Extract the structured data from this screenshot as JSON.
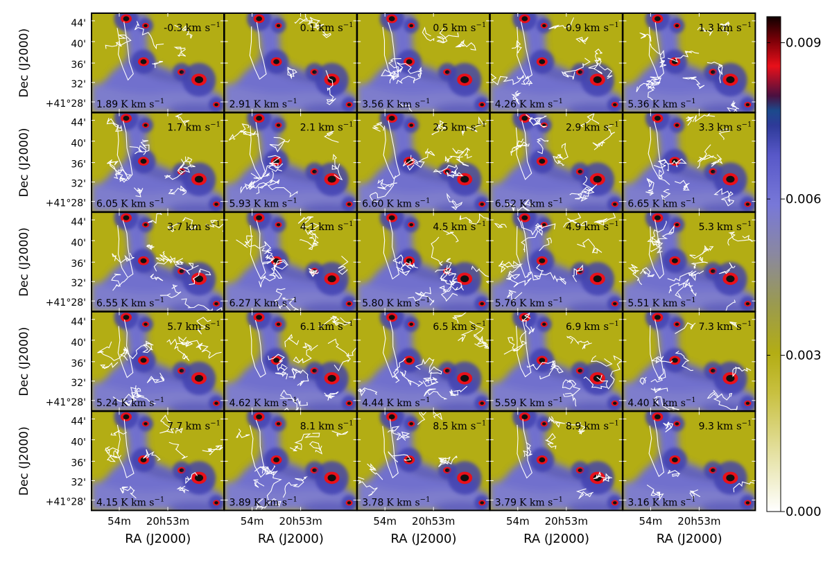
{
  "chart_data": {
    "type": "heatmap",
    "grid": {
      "rows": 5,
      "cols": 5
    },
    "xlabel": "RA (J2000)",
    "ylabel": "Dec (J2000)",
    "x_ticks": [
      "54m",
      "20h53m"
    ],
    "y_ticks": [
      "44'",
      "40'",
      "36'",
      "32'",
      "+41°28'"
    ],
    "colorbar": {
      "ticks": [
        "0.009",
        "0.006",
        "0.003",
        "0.000"
      ],
      "tick_values": [
        0.009,
        0.006,
        0.003,
        0.0
      ],
      "range": [
        0.0,
        0.0095
      ],
      "colors": {
        "low": "#ffffff",
        "olive": "#b9ad14",
        "gray": "#7f7f96",
        "blue": "#6a6ae2",
        "navy": "#1e2e84",
        "red": "#e8101a",
        "black": "#100000"
      }
    },
    "contour_color": "#ffffff",
    "background_color": "#b3ad14",
    "panels": [
      {
        "velocity": "-0.3",
        "unit": "km s",
        "integrated": "1.89",
        "int_unit": "K km s"
      },
      {
        "velocity": "0.1",
        "unit": "km s",
        "integrated": "2.91",
        "int_unit": "K km s"
      },
      {
        "velocity": "0.5",
        "unit": "km s",
        "integrated": "3.56",
        "int_unit": "K km s"
      },
      {
        "velocity": "0.9",
        "unit": "km s",
        "integrated": "4.26",
        "int_unit": "K km s"
      },
      {
        "velocity": "1.3",
        "unit": "km s",
        "integrated": "5.36",
        "int_unit": "K km s"
      },
      {
        "velocity": "1.7",
        "unit": "km s",
        "integrated": "6.05",
        "int_unit": "K km s"
      },
      {
        "velocity": "2.1",
        "unit": "km s",
        "integrated": "5.93",
        "int_unit": "K km s"
      },
      {
        "velocity": "2.5",
        "unit": "km s",
        "integrated": "6.60",
        "int_unit": "K km s"
      },
      {
        "velocity": "2.9",
        "unit": "km s",
        "integrated": "6.52",
        "int_unit": "K km s"
      },
      {
        "velocity": "3.3",
        "unit": "km s",
        "integrated": "6.65",
        "int_unit": "K km s"
      },
      {
        "velocity": "3.7",
        "unit": "km s",
        "integrated": "6.55",
        "int_unit": "K km s"
      },
      {
        "velocity": "4.1",
        "unit": "km s",
        "integrated": "6.27",
        "int_unit": "K km s"
      },
      {
        "velocity": "4.5",
        "unit": "km s",
        "integrated": "5.80",
        "int_unit": "K km s"
      },
      {
        "velocity": "4.9",
        "unit": "km s",
        "integrated": "5.76",
        "int_unit": "K km s"
      },
      {
        "velocity": "5.3",
        "unit": "km s",
        "integrated": "5.51",
        "int_unit": "K km s"
      },
      {
        "velocity": "5.7",
        "unit": "km s",
        "integrated": "5.24",
        "int_unit": "K km s"
      },
      {
        "velocity": "6.1",
        "unit": "km s",
        "integrated": "4.62",
        "int_unit": "K km s"
      },
      {
        "velocity": "6.5",
        "unit": "km s",
        "integrated": "4.44",
        "int_unit": "K km s"
      },
      {
        "velocity": "6.9",
        "unit": "km s",
        "integrated": "5.59",
        "int_unit": "K km s"
      },
      {
        "velocity": "7.3",
        "unit": "km s",
        "integrated": "4.40",
        "int_unit": "K km s"
      },
      {
        "velocity": "7.7",
        "unit": "km s",
        "integrated": "4.15",
        "int_unit": "K km s"
      },
      {
        "velocity": "8.1",
        "unit": "km s",
        "integrated": "3.89",
        "int_unit": "K km s"
      },
      {
        "velocity": "8.5",
        "unit": "km s",
        "integrated": "3.78",
        "int_unit": "K km s"
      },
      {
        "velocity": "8.9",
        "unit": "km s",
        "integrated": "3.79",
        "int_unit": "K km s"
      },
      {
        "velocity": "9.3",
        "unit": "km s",
        "integrated": "3.16",
        "int_unit": "K km s"
      }
    ]
  }
}
